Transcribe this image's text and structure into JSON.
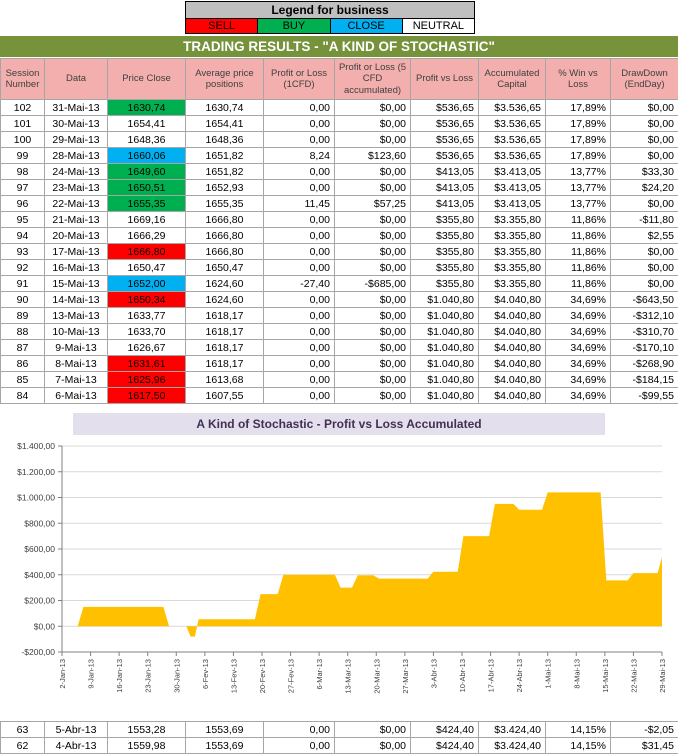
{
  "legend": {
    "title": "Legend for business",
    "items": [
      {
        "label": "SELL",
        "color": "#FF0000"
      },
      {
        "label": "BUY",
        "color": "#00B050"
      },
      {
        "label": "CLOSE",
        "color": "#00B0F0"
      },
      {
        "label": "NEUTRAL",
        "color": "#FFFFFF"
      }
    ]
  },
  "title": "TRADING RESULTS - \"A KIND OF STOCHASTIC\"",
  "table": {
    "headers": [
      "Session Number",
      "Data",
      "Price Close",
      "Average price positions",
      "Profit or Loss (1CFD)",
      "Profit or Loss (5 CFD accumulated)",
      "Profit vs Loss",
      "Accumulated Capital",
      "% Win vs Loss",
      "DrawDown (EndDay)"
    ],
    "rows": [
      {
        "cells": [
          "102",
          "31-Mai-13",
          "1630,74",
          "1630,74",
          "0,00",
          "$0,00",
          "$536,65",
          "$3.536,65",
          "17,89%",
          "$0,00"
        ],
        "price_highlight": "buy"
      },
      {
        "cells": [
          "101",
          "30-Mai-13",
          "1654,41",
          "1654,41",
          "0,00",
          "$0,00",
          "$536,65",
          "$3.536,65",
          "17,89%",
          "$0,00"
        ],
        "price_highlight": null
      },
      {
        "cells": [
          "100",
          "29-Mai-13",
          "1648,36",
          "1648,36",
          "0,00",
          "$0,00",
          "$536,65",
          "$3.536,65",
          "17,89%",
          "$0,00"
        ],
        "price_highlight": null
      },
      {
        "cells": [
          "99",
          "28-Mai-13",
          "1660,06",
          "1651,82",
          "8,24",
          "$123,60",
          "$536,65",
          "$3.536,65",
          "17,89%",
          "$0,00"
        ],
        "price_highlight": "close"
      },
      {
        "cells": [
          "98",
          "24-Mai-13",
          "1649,60",
          "1651,82",
          "0,00",
          "$0,00",
          "$413,05",
          "$3.413,05",
          "13,77%",
          "$33,30"
        ],
        "price_highlight": "buy"
      },
      {
        "cells": [
          "97",
          "23-Mai-13",
          "1650,51",
          "1652,93",
          "0,00",
          "$0,00",
          "$413,05",
          "$3.413,05",
          "13,77%",
          "$24,20"
        ],
        "price_highlight": "buy"
      },
      {
        "cells": [
          "96",
          "22-Mai-13",
          "1655,35",
          "1655,35",
          "11,45",
          "$57,25",
          "$413,05",
          "$3.413,05",
          "13,77%",
          "$0,00"
        ],
        "price_highlight": "buy"
      },
      {
        "cells": [
          "95",
          "21-Mai-13",
          "1669,16",
          "1666,80",
          "0,00",
          "$0,00",
          "$355,80",
          "$3.355,80",
          "11,86%",
          "-$11,80"
        ],
        "price_highlight": null
      },
      {
        "cells": [
          "94",
          "20-Mai-13",
          "1666,29",
          "1666,80",
          "0,00",
          "$0,00",
          "$355,80",
          "$3.355,80",
          "11,86%",
          "$2,55"
        ],
        "price_highlight": null
      },
      {
        "cells": [
          "93",
          "17-Mai-13",
          "1666,80",
          "1666,80",
          "0,00",
          "$0,00",
          "$355,80",
          "$3.355,80",
          "11,86%",
          "$0,00"
        ],
        "price_highlight": "sell"
      },
      {
        "cells": [
          "92",
          "16-Mai-13",
          "1650,47",
          "1650,47",
          "0,00",
          "$0,00",
          "$355,80",
          "$3.355,80",
          "11,86%",
          "$0,00"
        ],
        "price_highlight": null
      },
      {
        "cells": [
          "91",
          "15-Mai-13",
          "1652,00",
          "1624,60",
          "-27,40",
          "-$685,00",
          "$355,80",
          "$3.355,80",
          "11,86%",
          "$0,00"
        ],
        "price_highlight": "close"
      },
      {
        "cells": [
          "90",
          "14-Mai-13",
          "1650,34",
          "1624,60",
          "0,00",
          "$0,00",
          "$1.040,80",
          "$4.040,80",
          "34,69%",
          "-$643,50"
        ],
        "price_highlight": "sell"
      },
      {
        "cells": [
          "89",
          "13-Mai-13",
          "1633,77",
          "1618,17",
          "0,00",
          "$0,00",
          "$1.040,80",
          "$4.040,80",
          "34,69%",
          "-$312,10"
        ],
        "price_highlight": null
      },
      {
        "cells": [
          "88",
          "10-Mai-13",
          "1633,70",
          "1618,17",
          "0,00",
          "$0,00",
          "$1.040,80",
          "$4.040,80",
          "34,69%",
          "-$310,70"
        ],
        "price_highlight": null
      },
      {
        "cells": [
          "87",
          "9-Mai-13",
          "1626,67",
          "1618,17",
          "0,00",
          "$0,00",
          "$1.040,80",
          "$4.040,80",
          "34,69%",
          "-$170,10"
        ],
        "price_highlight": null
      },
      {
        "cells": [
          "86",
          "8-Mai-13",
          "1631,61",
          "1618,17",
          "0,00",
          "$0,00",
          "$1.040,80",
          "$4.040,80",
          "34,69%",
          "-$268,90"
        ],
        "price_highlight": "sell"
      },
      {
        "cells": [
          "85",
          "7-Mai-13",
          "1625,96",
          "1613,68",
          "0,00",
          "$0,00",
          "$1.040,80",
          "$4.040,80",
          "34,69%",
          "-$184,15"
        ],
        "price_highlight": "sell"
      },
      {
        "cells": [
          "84",
          "6-Mai-13",
          "1617,50",
          "1607,55",
          "0,00",
          "$0,00",
          "$1.040,80",
          "$4.040,80",
          "34,69%",
          "-$99,55"
        ],
        "price_highlight": "sell"
      }
    ],
    "bottom_rows": [
      {
        "cells": [
          "63",
          "5-Abr-13",
          "1553,28",
          "1553,69",
          "0,00",
          "$0,00",
          "$424,40",
          "$3.424,40",
          "14,15%",
          "-$2,05"
        ],
        "price_highlight": null
      },
      {
        "cells": [
          "62",
          "4-Abr-13",
          "1559,98",
          "1553,69",
          "0,00",
          "$0,00",
          "$424,40",
          "$3.424,40",
          "14,15%",
          "$31,45"
        ],
        "price_highlight": null
      }
    ]
  },
  "chart_data": {
    "type": "area",
    "title": "A Kind of Stochastic - Profit vs Loss Accumulated",
    "ylabel": "",
    "xlabel": "",
    "ylim": [
      -200,
      1400
    ],
    "grid": true,
    "legend_position": "none",
    "fill_color": "#FFC000",
    "categories": [
      "2-Jan-13",
      "9-Jan-13",
      "16-Jan-13",
      "23-Jan-13",
      "30-Jan-13",
      "6-Fev-13",
      "13-Fev-13",
      "20-Fev-13",
      "27-Fev-13",
      "6-Mar-13",
      "13-Mar-13",
      "20-Mar-13",
      "27-Mar-13",
      "3-Abr-13",
      "10-Abr-13",
      "17-Abr-13",
      "24-Abr-13",
      "1-Mai-13",
      "8-Mai-13",
      "15-Mai-13",
      "22-Mai-13",
      "29-Mai-13"
    ],
    "yticks": [
      [
        1400,
        "$1.400,00"
      ],
      [
        1200,
        "$1.200,00"
      ],
      [
        1000,
        "$1.000,00"
      ],
      [
        800,
        "$800,00"
      ],
      [
        600,
        "$600,00"
      ],
      [
        400,
        "$400,00"
      ],
      [
        200,
        "$200,00"
      ],
      [
        0,
        "$0,00"
      ],
      [
        -200,
        "-$200,00"
      ]
    ],
    "points": [
      [
        0,
        0
      ],
      [
        0.55,
        0
      ],
      [
        0.75,
        150
      ],
      [
        3.55,
        150
      ],
      [
        3.75,
        0
      ],
      [
        4.35,
        0
      ],
      [
        4.5,
        -80
      ],
      [
        4.65,
        -80
      ],
      [
        4.78,
        55
      ],
      [
        6.75,
        55
      ],
      [
        6.95,
        250
      ],
      [
        7.55,
        250
      ],
      [
        7.75,
        400
      ],
      [
        9.55,
        400
      ],
      [
        9.75,
        300
      ],
      [
        10.15,
        300
      ],
      [
        10.35,
        395
      ],
      [
        10.9,
        395
      ],
      [
        11.1,
        370
      ],
      [
        12.8,
        370
      ],
      [
        13.0,
        424
      ],
      [
        13.85,
        424
      ],
      [
        14.05,
        700
      ],
      [
        14.95,
        700
      ],
      [
        15.15,
        950
      ],
      [
        15.8,
        950
      ],
      [
        16.0,
        905
      ],
      [
        16.8,
        905
      ],
      [
        17.0,
        1040
      ],
      [
        18.85,
        1040
      ],
      [
        19.05,
        356
      ],
      [
        19.8,
        356
      ],
      [
        20.0,
        413
      ],
      [
        20.85,
        413
      ],
      [
        21,
        537
      ]
    ]
  }
}
